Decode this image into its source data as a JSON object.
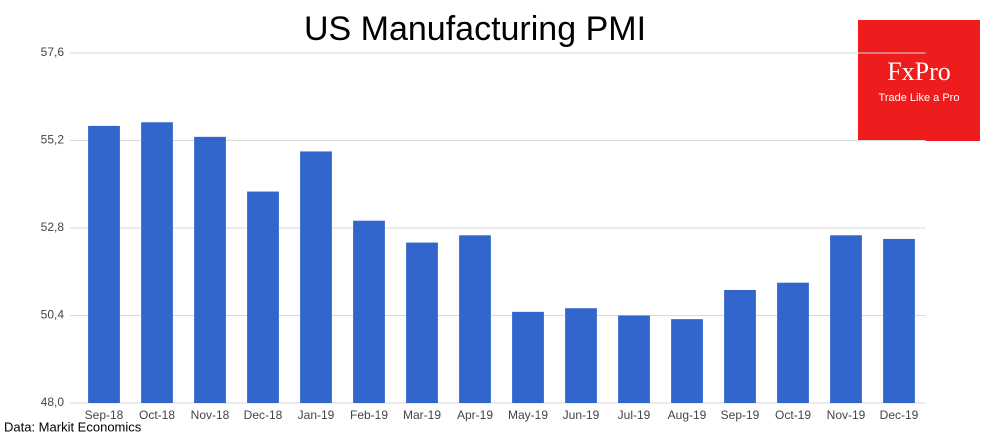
{
  "chart_data": {
    "type": "bar",
    "title": "US Manufacturing PMI",
    "categories": [
      "Sep-18",
      "Oct-18",
      "Nov-18",
      "Dec-18",
      "Jan-19",
      "Feb-19",
      "Mar-19",
      "Apr-19",
      "May-19",
      "Jun-19",
      "Jul-19",
      "Aug-19",
      "Sep-19",
      "Oct-19",
      "Nov-19",
      "Dec-19"
    ],
    "values": [
      55.6,
      55.7,
      55.3,
      53.8,
      54.9,
      53.0,
      52.4,
      52.6,
      50.5,
      50.6,
      50.4,
      50.3,
      51.1,
      51.3,
      52.6,
      52.5
    ],
    "color": "#3366cc",
    "ylim": [
      48.0,
      57.6
    ],
    "yticks": [
      {
        "value": 48.0,
        "label": "48,0"
      },
      {
        "value": 50.4,
        "label": "50,4"
      },
      {
        "value": 52.8,
        "label": "52,8"
      },
      {
        "value": 55.2,
        "label": "55,2"
      },
      {
        "value": 57.6,
        "label": "57,6"
      }
    ],
    "grid": true,
    "source": "Data: Markit Economics"
  },
  "logo": {
    "brand": "FxPro",
    "tagline": "Trade Like a Pro"
  }
}
